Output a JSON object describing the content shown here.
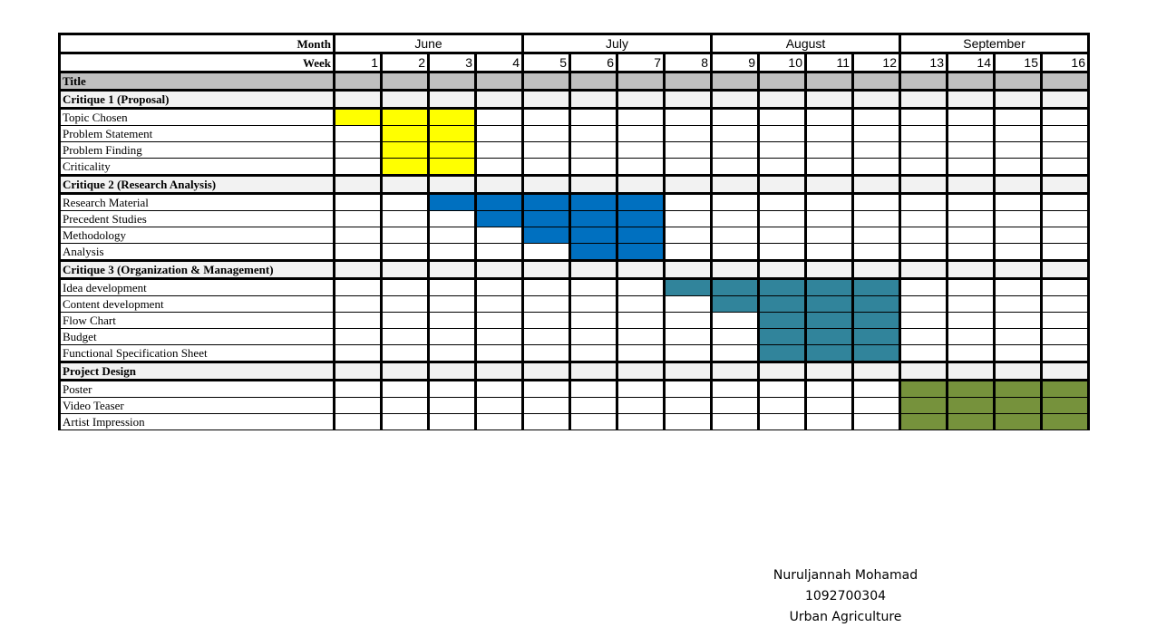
{
  "header": {
    "month_label": "Month",
    "week_label": "Week"
  },
  "months": [
    {
      "name": "June",
      "weeks": 4
    },
    {
      "name": "July",
      "weeks": 4
    },
    {
      "name": "August",
      "weeks": 4
    },
    {
      "name": "September",
      "weeks": 4
    }
  ],
  "weeks": [
    "1",
    "2",
    "3",
    "4",
    "5",
    "6",
    "7",
    "8",
    "9",
    "10",
    "11",
    "12",
    "13",
    "14",
    "15",
    "16"
  ],
  "colors": {
    "title_bg": "#bfbfbf",
    "section_bg": "#f2f2f2",
    "yellow": "#ffff00",
    "blue": "#0070c0",
    "teal": "#31849b",
    "green": "#76923c"
  },
  "rows": [
    {
      "type": "title",
      "label": "Title"
    },
    {
      "type": "section",
      "label": "Critique 1 (Proposal)"
    },
    {
      "type": "task",
      "label": "Topic Chosen",
      "weeks": [
        1,
        2,
        3
      ],
      "color": "yellow"
    },
    {
      "type": "task",
      "label": "Problem Statement",
      "weeks": [
        2,
        3
      ],
      "color": "yellow"
    },
    {
      "type": "task",
      "label": "Problem Finding",
      "weeks": [
        2,
        3
      ],
      "color": "yellow"
    },
    {
      "type": "task",
      "label": "Criticality",
      "weeks": [
        2,
        3
      ],
      "color": "yellow"
    },
    {
      "type": "section",
      "label": "Critique 2 (Research Analysis)"
    },
    {
      "type": "task",
      "label": "Research Material",
      "weeks": [
        3,
        4,
        5,
        6,
        7
      ],
      "color": "blue"
    },
    {
      "type": "task",
      "label": "Precedent Studies",
      "weeks": [
        4,
        5,
        6,
        7
      ],
      "color": "blue"
    },
    {
      "type": "task",
      "label": "Methodology",
      "weeks": [
        5,
        6,
        7
      ],
      "color": "blue"
    },
    {
      "type": "task",
      "label": "Analysis",
      "weeks": [
        6,
        7
      ],
      "color": "blue"
    },
    {
      "type": "section",
      "label": "Critique 3 (Organization & Management)"
    },
    {
      "type": "task",
      "label": "Idea development",
      "weeks": [
        8,
        9,
        10,
        11,
        12
      ],
      "color": "teal"
    },
    {
      "type": "task",
      "label": "Content development",
      "weeks": [
        9,
        10,
        11,
        12
      ],
      "color": "teal"
    },
    {
      "type": "task",
      "label": "Flow Chart",
      "weeks": [
        10,
        11,
        12
      ],
      "color": "teal"
    },
    {
      "type": "task",
      "label": "Budget",
      "weeks": [
        10,
        11,
        12
      ],
      "color": "teal"
    },
    {
      "type": "task",
      "label": "Functional Specification Sheet",
      "weeks": [
        10,
        11,
        12
      ],
      "color": "teal"
    },
    {
      "type": "section",
      "label": "Project Design"
    },
    {
      "type": "task",
      "label": "Poster",
      "weeks": [
        13,
        14,
        15,
        16
      ],
      "color": "green"
    },
    {
      "type": "task",
      "label": "Video Teaser",
      "weeks": [
        13,
        14,
        15,
        16
      ],
      "color": "green"
    },
    {
      "type": "task",
      "label": "Artist Impression",
      "weeks": [
        13,
        14,
        15,
        16
      ],
      "color": "green"
    }
  ],
  "signature": {
    "name": "Nuruljannah Mohamad",
    "id": "1092700304",
    "topic": "Urban Agriculture"
  }
}
